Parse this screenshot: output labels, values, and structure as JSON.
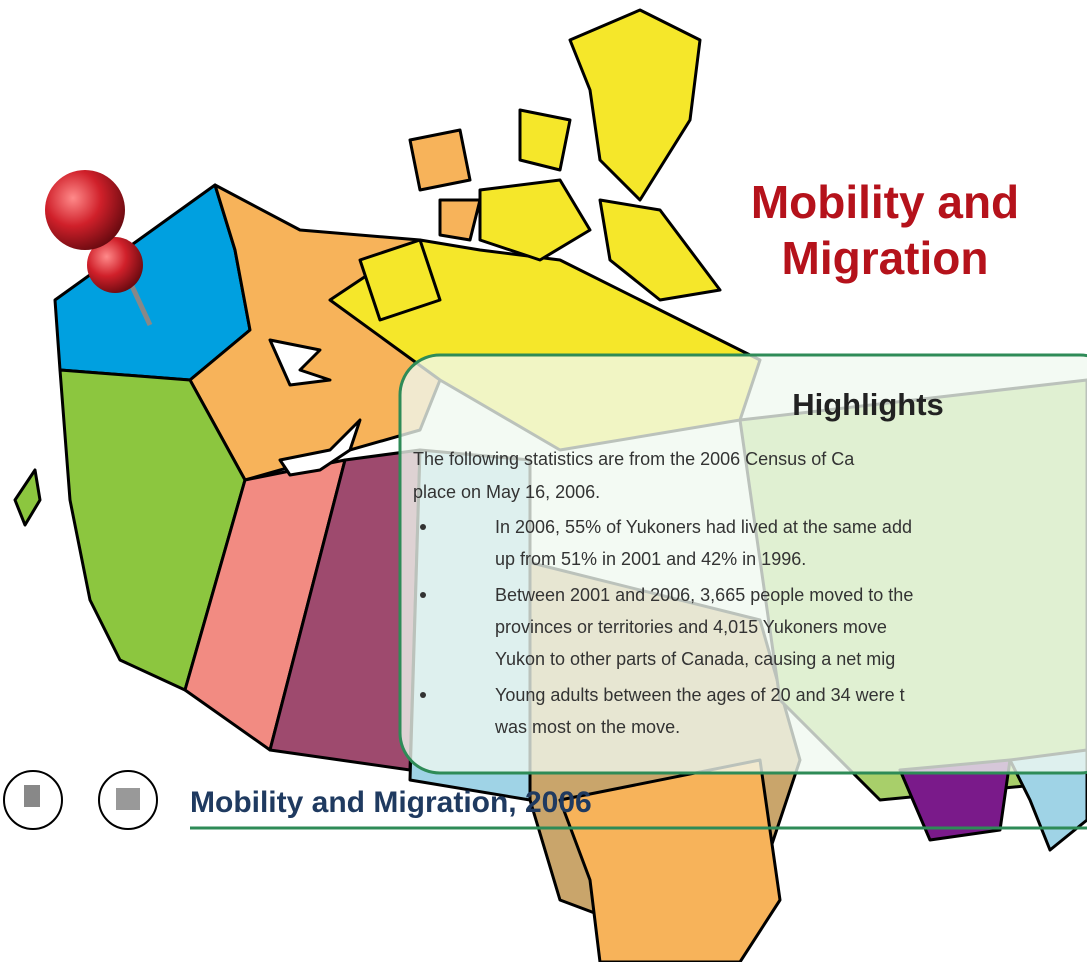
{
  "title": {
    "lines": [
      "Mobility and",
      "Migration"
    ]
  },
  "highlights": {
    "heading": "Highlights",
    "intro": [
      "The following statistics are from the 2006 Census of Ca",
      "place on May 16, 2006."
    ],
    "bullets": [
      [
        "In 2006, 55% of Yukoners had lived at the same add",
        "up from 51% in 2001 and 42% in 1996."
      ],
      [
        "Between 2001 and 2006, 3,665 people moved to the",
        "provinces or territories and 4,015 Yukoners move",
        "Yukon to other parts of Canada, causing a net mig"
      ],
      [
        "Young adults between the ages of 20 and 34 were t",
        "was most on the move."
      ]
    ]
  },
  "footer": {
    "title": "Mobility and Migration, 2006"
  }
}
